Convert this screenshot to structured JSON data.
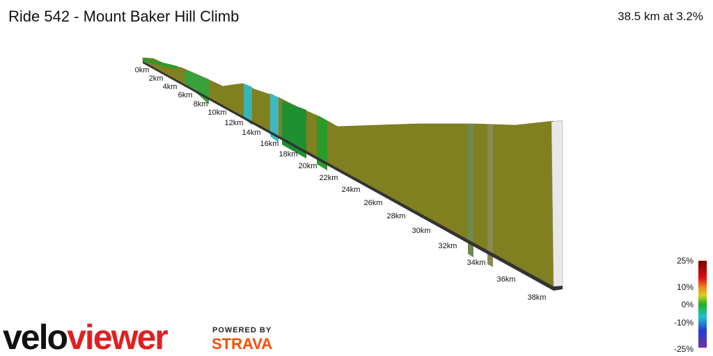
{
  "header": {
    "title": "Ride 542 - Mount Baker Hill Climb",
    "summary": "38.5 km at 3.2%"
  },
  "profile": {
    "distance_labels": [
      "0km",
      "2km",
      "4km",
      "6km",
      "8km",
      "10km",
      "12km",
      "14km",
      "16km",
      "18km",
      "20km",
      "22km",
      "24km",
      "26km",
      "28km",
      "30km",
      "32km",
      "34km",
      "36km",
      "38km"
    ]
  },
  "legend": {
    "labels": [
      "25%",
      "10%",
      "0%",
      "-10%",
      "-25%"
    ]
  },
  "branding": {
    "logo_velo": "velo",
    "logo_viewer": "viewer",
    "powered_by": "POWERED BY",
    "strava": "STRAVA"
  }
}
